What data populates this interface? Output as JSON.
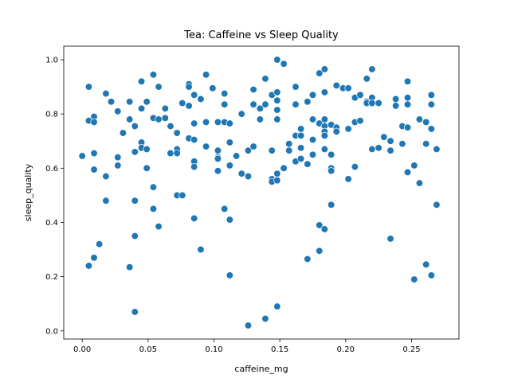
{
  "chart_data": {
    "type": "scatter",
    "title": "Tea: Caffeine vs Sleep Quality",
    "xlabel": "caffeine_mg",
    "ylabel": "sleep_quality",
    "xlim": [
      -0.014,
      0.286
    ],
    "ylim": [
      -0.03,
      1.05
    ],
    "xticks": [
      0.0,
      0.05,
      0.1,
      0.15,
      0.2,
      0.25
    ],
    "xtick_labels": [
      "0.00",
      "0.05",
      "0.10",
      "0.15",
      "0.20",
      "0.25"
    ],
    "yticks": [
      0.0,
      0.2,
      0.4,
      0.6,
      0.8,
      1.0
    ],
    "ytick_labels": [
      "0.0",
      "0.2",
      "0.4",
      "0.6",
      "0.8",
      "1.0"
    ],
    "grid": false,
    "legend": "none",
    "colors": {
      "marker": "#1f77b4",
      "marker_edge": "#ffffff",
      "axes": "#000000"
    },
    "points": [
      [
        0.0,
        0.645
      ],
      [
        0.005,
        0.775
      ],
      [
        0.005,
        0.9
      ],
      [
        0.005,
        0.24
      ],
      [
        0.009,
        0.79
      ],
      [
        0.009,
        0.77
      ],
      [
        0.009,
        0.655
      ],
      [
        0.009,
        0.595
      ],
      [
        0.009,
        0.27
      ],
      [
        0.013,
        0.32
      ],
      [
        0.018,
        0.875
      ],
      [
        0.018,
        0.48
      ],
      [
        0.018,
        0.57
      ],
      [
        0.022,
        0.845
      ],
      [
        0.027,
        0.81
      ],
      [
        0.027,
        0.64
      ],
      [
        0.027,
        0.61
      ],
      [
        0.031,
        0.73
      ],
      [
        0.036,
        0.845
      ],
      [
        0.036,
        0.78
      ],
      [
        0.036,
        0.235
      ],
      [
        0.04,
        0.755
      ],
      [
        0.04,
        0.66
      ],
      [
        0.04,
        0.48
      ],
      [
        0.04,
        0.35
      ],
      [
        0.04,
        0.07
      ],
      [
        0.045,
        0.92
      ],
      [
        0.045,
        0.82
      ],
      [
        0.045,
        0.695
      ],
      [
        0.045,
        0.675
      ],
      [
        0.049,
        0.845
      ],
      [
        0.049,
        0.67
      ],
      [
        0.049,
        0.6
      ],
      [
        0.054,
        0.945
      ],
      [
        0.054,
        0.785
      ],
      [
        0.054,
        0.53
      ],
      [
        0.054,
        0.45
      ],
      [
        0.058,
        0.9
      ],
      [
        0.058,
        0.78
      ],
      [
        0.058,
        0.385
      ],
      [
        0.063,
        0.82
      ],
      [
        0.063,
        0.785
      ],
      [
        0.067,
        0.755
      ],
      [
        0.067,
        0.655
      ],
      [
        0.072,
        0.73
      ],
      [
        0.072,
        0.67
      ],
      [
        0.072,
        0.655
      ],
      [
        0.072,
        0.5
      ],
      [
        0.076,
        0.84
      ],
      [
        0.076,
        0.5
      ],
      [
        0.081,
        0.91
      ],
      [
        0.081,
        0.9
      ],
      [
        0.081,
        0.83
      ],
      [
        0.081,
        0.71
      ],
      [
        0.085,
        0.87
      ],
      [
        0.085,
        0.765
      ],
      [
        0.085,
        0.705
      ],
      [
        0.085,
        0.625
      ],
      [
        0.085,
        0.605
      ],
      [
        0.085,
        0.415
      ],
      [
        0.09,
        0.855
      ],
      [
        0.09,
        0.3
      ],
      [
        0.094,
        0.945
      ],
      [
        0.094,
        0.77
      ],
      [
        0.094,
        0.68
      ],
      [
        0.099,
        0.895
      ],
      [
        0.103,
        0.77
      ],
      [
        0.103,
        0.665
      ],
      [
        0.103,
        0.64
      ],
      [
        0.103,
        0.635
      ],
      [
        0.103,
        0.59
      ],
      [
        0.108,
        0.875
      ],
      [
        0.108,
        0.835
      ],
      [
        0.108,
        0.77
      ],
      [
        0.108,
        0.45
      ],
      [
        0.112,
        0.765
      ],
      [
        0.112,
        0.695
      ],
      [
        0.112,
        0.61
      ],
      [
        0.112,
        0.41
      ],
      [
        0.112,
        0.205
      ],
      [
        0.117,
        0.645
      ],
      [
        0.121,
        0.8
      ],
      [
        0.121,
        0.58
      ],
      [
        0.126,
        0.665
      ],
      [
        0.126,
        0.57
      ],
      [
        0.126,
        0.02
      ],
      [
        0.13,
        0.89
      ],
      [
        0.13,
        0.835
      ],
      [
        0.13,
        0.68
      ],
      [
        0.135,
        0.82
      ],
      [
        0.135,
        0.78
      ],
      [
        0.139,
        0.93
      ],
      [
        0.139,
        0.835
      ],
      [
        0.139,
        0.045
      ],
      [
        0.144,
        0.87
      ],
      [
        0.144,
        0.665
      ],
      [
        0.144,
        0.56
      ],
      [
        0.144,
        0.55
      ],
      [
        0.148,
        1.0
      ],
      [
        0.148,
        0.88
      ],
      [
        0.148,
        0.85
      ],
      [
        0.148,
        0.815
      ],
      [
        0.148,
        0.78
      ],
      [
        0.148,
        0.58
      ],
      [
        0.148,
        0.555
      ],
      [
        0.148,
        0.09
      ],
      [
        0.153,
        0.985
      ],
      [
        0.153,
        0.6
      ],
      [
        0.157,
        0.69
      ],
      [
        0.157,
        0.665
      ],
      [
        0.162,
        0.9
      ],
      [
        0.162,
        0.835
      ],
      [
        0.162,
        0.72
      ],
      [
        0.162,
        0.625
      ],
      [
        0.166,
        0.745
      ],
      [
        0.166,
        0.72
      ],
      [
        0.166,
        0.675
      ],
      [
        0.166,
        0.635
      ],
      [
        0.171,
        0.845
      ],
      [
        0.171,
        0.615
      ],
      [
        0.171,
        0.265
      ],
      [
        0.175,
        0.87
      ],
      [
        0.175,
        0.78
      ],
      [
        0.175,
        0.705
      ],
      [
        0.175,
        0.65
      ],
      [
        0.18,
        0.95
      ],
      [
        0.18,
        0.765
      ],
      [
        0.18,
        0.39
      ],
      [
        0.18,
        0.295
      ],
      [
        0.184,
        0.965
      ],
      [
        0.184,
        0.88
      ],
      [
        0.184,
        0.78
      ],
      [
        0.184,
        0.755
      ],
      [
        0.184,
        0.735
      ],
      [
        0.184,
        0.72
      ],
      [
        0.184,
        0.67
      ],
      [
        0.184,
        0.375
      ],
      [
        0.189,
        0.76
      ],
      [
        0.189,
        0.65
      ],
      [
        0.189,
        0.6
      ],
      [
        0.189,
        0.59
      ],
      [
        0.189,
        0.465
      ],
      [
        0.193,
        0.905
      ],
      [
        0.193,
        0.75
      ],
      [
        0.193,
        0.735
      ],
      [
        0.198,
        0.895
      ],
      [
        0.202,
        0.895
      ],
      [
        0.202,
        0.745
      ],
      [
        0.202,
        0.56
      ],
      [
        0.207,
        0.86
      ],
      [
        0.207,
        0.77
      ],
      [
        0.207,
        0.605
      ],
      [
        0.211,
        0.87
      ],
      [
        0.211,
        0.775
      ],
      [
        0.216,
        0.93
      ],
      [
        0.216,
        0.845
      ],
      [
        0.216,
        0.84
      ],
      [
        0.22,
        0.965
      ],
      [
        0.22,
        0.86
      ],
      [
        0.22,
        0.84
      ],
      [
        0.22,
        0.67
      ],
      [
        0.225,
        0.84
      ],
      [
        0.225,
        0.675
      ],
      [
        0.229,
        0.715
      ],
      [
        0.234,
        0.7
      ],
      [
        0.234,
        0.665
      ],
      [
        0.234,
        0.34
      ],
      [
        0.238,
        0.855
      ],
      [
        0.238,
        0.83
      ],
      [
        0.243,
        0.755
      ],
      [
        0.243,
        0.69
      ],
      [
        0.247,
        0.92
      ],
      [
        0.247,
        0.86
      ],
      [
        0.247,
        0.835
      ],
      [
        0.247,
        0.75
      ],
      [
        0.247,
        0.585
      ],
      [
        0.252,
        0.61
      ],
      [
        0.252,
        0.19
      ],
      [
        0.256,
        0.78
      ],
      [
        0.256,
        0.545
      ],
      [
        0.261,
        0.77
      ],
      [
        0.261,
        0.69
      ],
      [
        0.261,
        0.245
      ],
      [
        0.265,
        0.87
      ],
      [
        0.265,
        0.835
      ],
      [
        0.265,
        0.745
      ],
      [
        0.265,
        0.205
      ],
      [
        0.269,
        0.67
      ],
      [
        0.269,
        0.465
      ]
    ]
  }
}
